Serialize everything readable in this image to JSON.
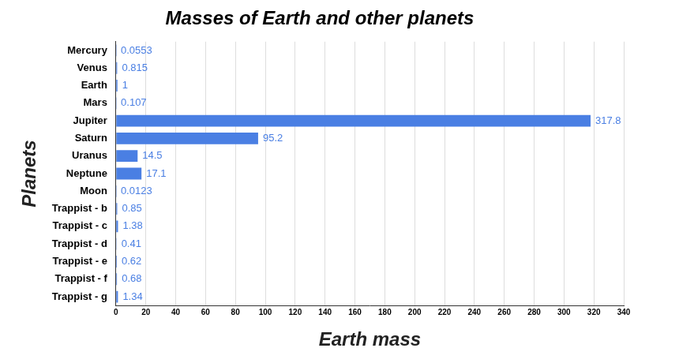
{
  "chart_data": {
    "type": "bar",
    "orientation": "horizontal",
    "title": "Masses of Earth and other planets",
    "x_label": "Earth mass",
    "y_label": "Planets",
    "categories": [
      "Mercury",
      "Venus",
      "Earth",
      "Mars",
      "Jupiter",
      "Saturn",
      "Uranus",
      "Neptune",
      "Moon",
      "Trappist - b",
      "Trappist - c",
      "Trappist - d",
      "Trappist - e",
      "Trappist - f",
      "Trappist - g"
    ],
    "values": [
      0.0553,
      0.815,
      1,
      0.107,
      317.8,
      95.2,
      14.5,
      17.1,
      0.0123,
      0.85,
      1.38,
      0.41,
      0.62,
      0.68,
      1.34
    ],
    "color": "#4a7fe3",
    "xlim": [
      0,
      340
    ],
    "xticks": [
      0,
      20,
      40,
      60,
      80,
      100,
      120,
      140,
      160,
      180,
      200,
      220,
      240,
      260,
      280,
      300,
      320,
      340
    ],
    "grid": true,
    "data_labels": true
  }
}
